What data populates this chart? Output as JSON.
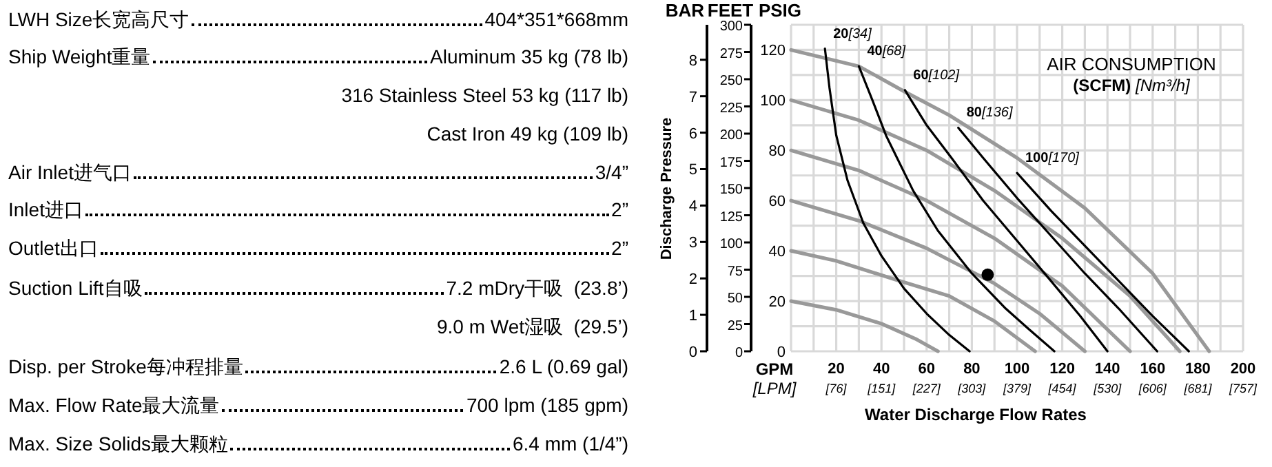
{
  "chart_data": [
    {
      "type": "other",
      "annotations": [
        "LWH Size长宽高尺寸",
        "404*351*668mm",
        "Ship Weight重量",
        "Aluminum 35 kg (78 lb)",
        "316 Stainless Steel 53 kg (117 lb)",
        "Cast Iron 49 kg (109 lb)",
        "Air Inlet进气口",
        "3/4”",
        "Inlet进口",
        "2”",
        "Outlet出口",
        "2”",
        "Suction Lift自吸",
        "7.2 mDry干吸  (23.8’)",
        "9.0 m Wet湿吸  (29.5’)",
        "Disp. per Stroke每冲程排量",
        "2.6 L (0.69 gal)",
        "Max. Flow Rate最大流量",
        "700 lpm (185 gpm)",
        "Max. Size Solids最大颗粒",
        "6.4 mm (1/4”)"
      ]
    },
    {
      "type": "line",
      "ylabel": "Discharge Pressure",
      "xlabel": "Water Discharge Flow Rates",
      "grid": true,
      "line_style": "solid",
      "annotations": [
        "BAR",
        "FEET",
        "PSIG",
        "GPM",
        "*[LPM]*",
        "AIR CONSUMPTION",
        "**(SCFM)** *[Nm³/h]*"
      ],
      "xlim": [
        0,
        200
      ],
      "xticks": [
        {
          "value": 0,
          "label": null
        },
        {
          "value": 10,
          "label": null
        },
        20,
        {
          "value": 30,
          "label": null
        },
        40,
        {
          "value": 50,
          "label": null
        },
        60,
        {
          "value": 70,
          "label": null
        },
        80,
        {
          "value": 90,
          "label": null
        },
        100,
        {
          "value": 110,
          "label": null
        },
        120,
        {
          "value": 130,
          "label": null
        },
        140,
        {
          "value": 150,
          "label": null
        },
        160,
        {
          "value": 170,
          "label": null
        },
        180,
        {
          "value": 190,
          "label": null
        },
        200
      ],
      "x2lim": [
        0,
        757.1
      ],
      "x2ticks": [
        {
          "value": 75.7,
          "label": "[76]"
        },
        {
          "value": 151.4,
          "label": "[151]"
        },
        {
          "value": 227.1,
          "label": "[227]"
        },
        {
          "value": 302.8,
          "label": "[303]"
        },
        {
          "value": 378.5,
          "label": "[379]"
        },
        {
          "value": 454.2,
          "label": "[454]"
        },
        {
          "value": 530,
          "label": "[530]"
        },
        {
          "value": 605.7,
          "label": "[606]"
        },
        {
          "value": 681.4,
          "label": "[681]"
        },
        {
          "value": 757.1,
          "label": "[757]"
        }
      ],
      "ylim": [
        0,
        8.96
      ],
      "yticks": [
        0,
        1,
        2,
        3,
        4,
        5,
        6,
        7,
        8
      ],
      "y2lim": [
        0,
        300
      ],
      "y2ticks": [
        0,
        25,
        50,
        75,
        100,
        125,
        150,
        175,
        200,
        225,
        250,
        275,
        300
      ],
      "y3lim": [
        0,
        130
      ],
      "y3ticks": [
        0,
        {
          "value": 10,
          "label": null
        },
        20,
        {
          "value": 30,
          "label": null
        },
        40,
        {
          "value": 50,
          "label": null
        },
        60,
        {
          "value": 70,
          "label": null
        },
        80,
        {
          "value": 90,
          "label": null
        },
        100,
        {
          "value": 110,
          "label": null
        },
        120,
        {
          "value": 130,
          "label": null
        }
      ],
      "series": [
        {
          "axis": "y3",
          "color": "#999999",
          "x": [
            0,
            30,
            50,
            70,
            100,
            130,
            160,
            185
          ],
          "values": [
            120,
            113.5,
            103.5,
            94,
            77,
            57,
            31,
            0
          ]
        },
        {
          "axis": "y3",
          "color": "#999999",
          "x": [
            0,
            30,
            60,
            90,
            120,
            150,
            172
          ],
          "values": [
            100,
            92,
            80,
            64,
            45,
            22,
            0
          ]
        },
        {
          "axis": "y3",
          "color": "#999999",
          "x": [
            0,
            30,
            60,
            90,
            120,
            150
          ],
          "values": [
            80,
            72,
            60,
            45,
            26,
            0
          ]
        },
        {
          "axis": "y3",
          "color": "#999999",
          "x": [
            0,
            30,
            60,
            90,
            110,
            130
          ],
          "values": [
            60,
            52,
            41,
            27,
            15,
            0
          ]
        },
        {
          "axis": "y3",
          "color": "#999999",
          "x": [
            0,
            20,
            46,
            70,
            90,
            108
          ],
          "values": [
            40,
            36,
            28.6,
            22,
            12,
            0
          ]
        },
        {
          "axis": "y3",
          "color": "#999999",
          "x": [
            0,
            20,
            40,
            55,
            65
          ],
          "values": [
            20,
            16.5,
            11,
            5,
            0
          ]
        },
        {
          "axis": "y3",
          "name": "20[34]",
          "color": "#000000",
          "x": [
            15,
            17,
            20,
            25,
            32,
            40,
            50,
            60,
            70,
            79
          ],
          "values": [
            120.5,
            105,
            86,
            68,
            51,
            38,
            25,
            15,
            6.5,
            0
          ]
        },
        {
          "axis": "y3",
          "name": "40[68]",
          "color": "#000000",
          "x": [
            30,
            36,
            42,
            54,
            65,
            80,
            95,
            105,
            116.5
          ],
          "values": [
            113.5,
            100,
            86,
            64,
            48,
            31,
            17,
            9,
            0
          ]
        },
        {
          "axis": "y3",
          "name": "60[102]",
          "color": "#000000",
          "x": [
            50.4,
            60,
            71,
            85,
            100,
            115,
            128,
            140
          ],
          "values": [
            104,
            90,
            77,
            60,
            44,
            28,
            14,
            0
          ]
        },
        {
          "axis": "y3",
          "name": "80[136]",
          "color": "#000000",
          "x": [
            74,
            85,
            100,
            115,
            130,
            145,
            162
          ],
          "values": [
            89,
            77,
            61,
            46,
            31,
            17,
            0
          ]
        },
        {
          "axis": "y3",
          "name": "100[170]",
          "color": "#000000",
          "x": [
            100,
            115,
            130,
            145,
            160,
            176
          ],
          "values": [
            71,
            56,
            42,
            28,
            14,
            0
          ]
        },
        {
          "axis": "y3",
          "type": "scatter",
          "color": "#000000",
          "x": [
            87
          ],
          "values": [
            30.5
          ]
        }
      ]
    }
  ]
}
